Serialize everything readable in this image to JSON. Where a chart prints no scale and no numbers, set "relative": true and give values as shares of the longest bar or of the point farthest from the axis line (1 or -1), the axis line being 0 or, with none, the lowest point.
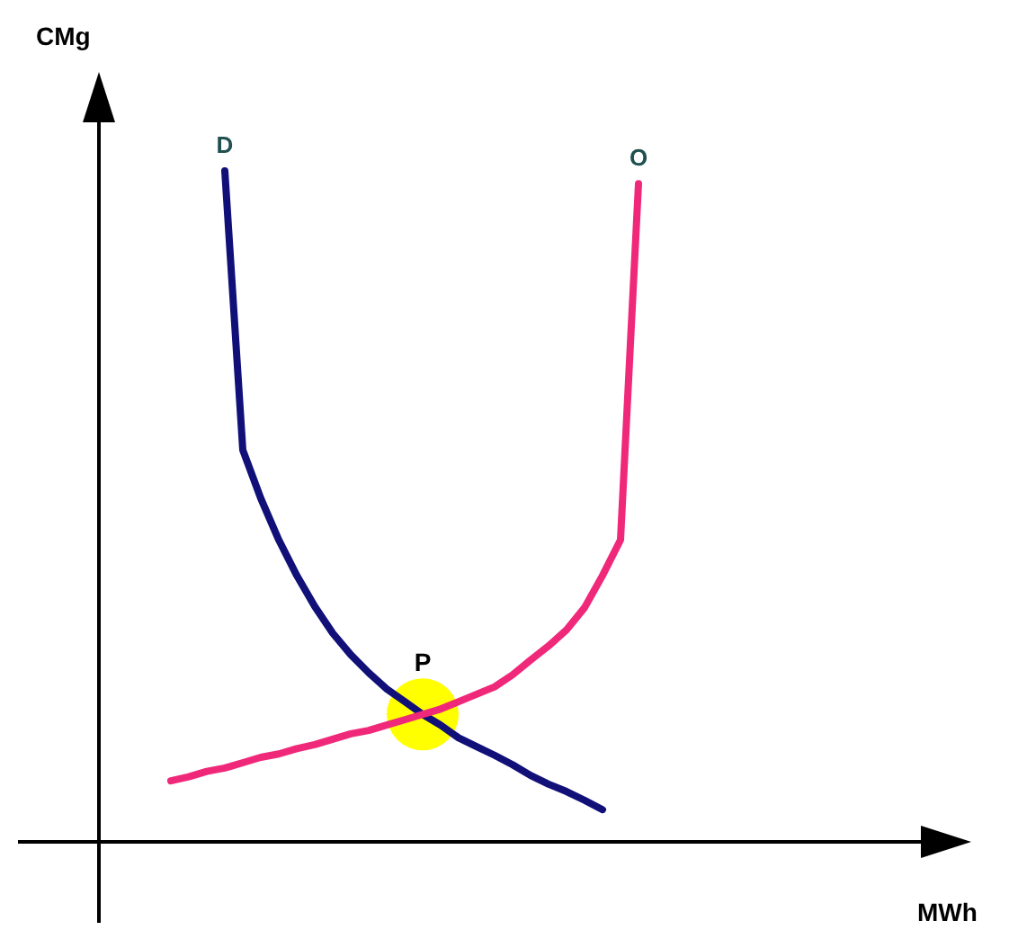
{
  "chart_data": {
    "type": "line",
    "relative": true,
    "xlabel": "MWh",
    "ylabel": "CMg",
    "legend": false,
    "marker": "none",
    "categories": [
      null,
      null,
      null,
      null,
      null,
      null,
      null,
      null,
      null,
      null,
      null,
      null,
      null,
      null,
      null,
      null,
      null,
      null,
      null,
      null,
      null,
      null,
      null,
      null,
      null,
      null,
      null,
      null,
      null,
      null,
      null,
      null,
      null,
      null,
      null,
      null,
      null,
      null,
      null,
      null,
      null,
      null,
      null,
      null,
      null,
      null,
      null,
      null
    ],
    "series": [
      {
        "name": "D",
        "color": "#101078",
        "values": [
          null,
          null,
          null,
          null,
          null,
          null,
          null,
          1.0,
          0.584,
          0.512,
          0.45,
          0.397,
          0.351,
          0.311,
          0.279,
          0.252,
          0.228,
          0.209,
          0.19,
          0.174,
          0.155,
          0.142,
          0.129,
          0.115,
          0.099,
          0.086,
          0.075,
          0.062,
          0.048,
          null,
          null,
          null,
          null,
          null,
          null,
          null,
          null,
          null,
          null,
          null,
          null,
          null,
          null,
          null,
          null,
          null,
          null,
          null
        ]
      },
      {
        "name": "O",
        "color": "#f0287a",
        "values": [
          null,
          null,
          null,
          null,
          0.091,
          0.097,
          0.105,
          0.11,
          0.118,
          0.126,
          0.131,
          0.139,
          0.145,
          0.153,
          0.161,
          0.166,
          0.174,
          0.182,
          0.19,
          0.198,
          0.209,
          0.22,
          0.231,
          0.249,
          0.271,
          0.292,
          0.316,
          0.349,
          0.397,
          0.45,
          0.981,
          null,
          null,
          null,
          null,
          null,
          null,
          null,
          null,
          null,
          null,
          null,
          null,
          null,
          null,
          null,
          null,
          null
        ]
      }
    ],
    "annotations": [
      {
        "text": "P",
        "y": 0.19
      }
    ]
  }
}
